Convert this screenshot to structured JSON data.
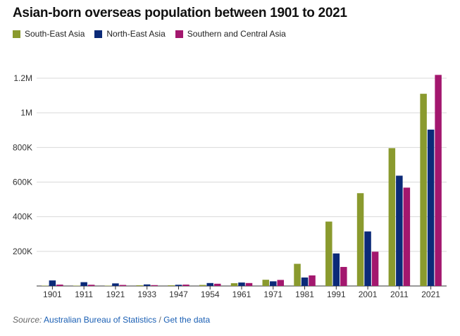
{
  "chart_data": {
    "type": "bar",
    "title": "Asian-born overseas population between 1901 to 2021",
    "categories": [
      "1901",
      "1911",
      "1921",
      "1933",
      "1947",
      "1954",
      "1961",
      "1971",
      "1981",
      "1991",
      "2001",
      "2011",
      "2021"
    ],
    "series": [
      {
        "name": "South-East Asia",
        "color": "#8a9a2e",
        "values": [
          2000,
          2000,
          2000,
          4000,
          4000,
          6000,
          16000,
          36000,
          128000,
          372000,
          536000,
          796000,
          1110000
        ]
      },
      {
        "name": "North-East Asia",
        "color": "#0b2a78",
        "values": [
          32000,
          22000,
          15000,
          9000,
          7000,
          17000,
          20000,
          27000,
          49000,
          188000,
          315000,
          637000,
          903000
        ]
      },
      {
        "name": "Southern and Central Asia",
        "color": "#a3176e",
        "values": [
          8000,
          7000,
          6000,
          5000,
          8000,
          13000,
          17000,
          35000,
          61000,
          110000,
          198000,
          568000,
          1219000
        ]
      }
    ],
    "ylim": [
      0,
      1200000
    ],
    "yticks": [
      0,
      200000,
      400000,
      600000,
      800000,
      1000000,
      1200000
    ],
    "ytick_labels": [
      "",
      "200K",
      "400K",
      "600K",
      "800K",
      "1M",
      "1.2M"
    ],
    "grid": true,
    "legend_position": "top-left"
  },
  "footer": {
    "source_label": "Source:",
    "source_link": "Australian Bureau of Statistics",
    "separator": "/",
    "data_link": "Get the data"
  }
}
